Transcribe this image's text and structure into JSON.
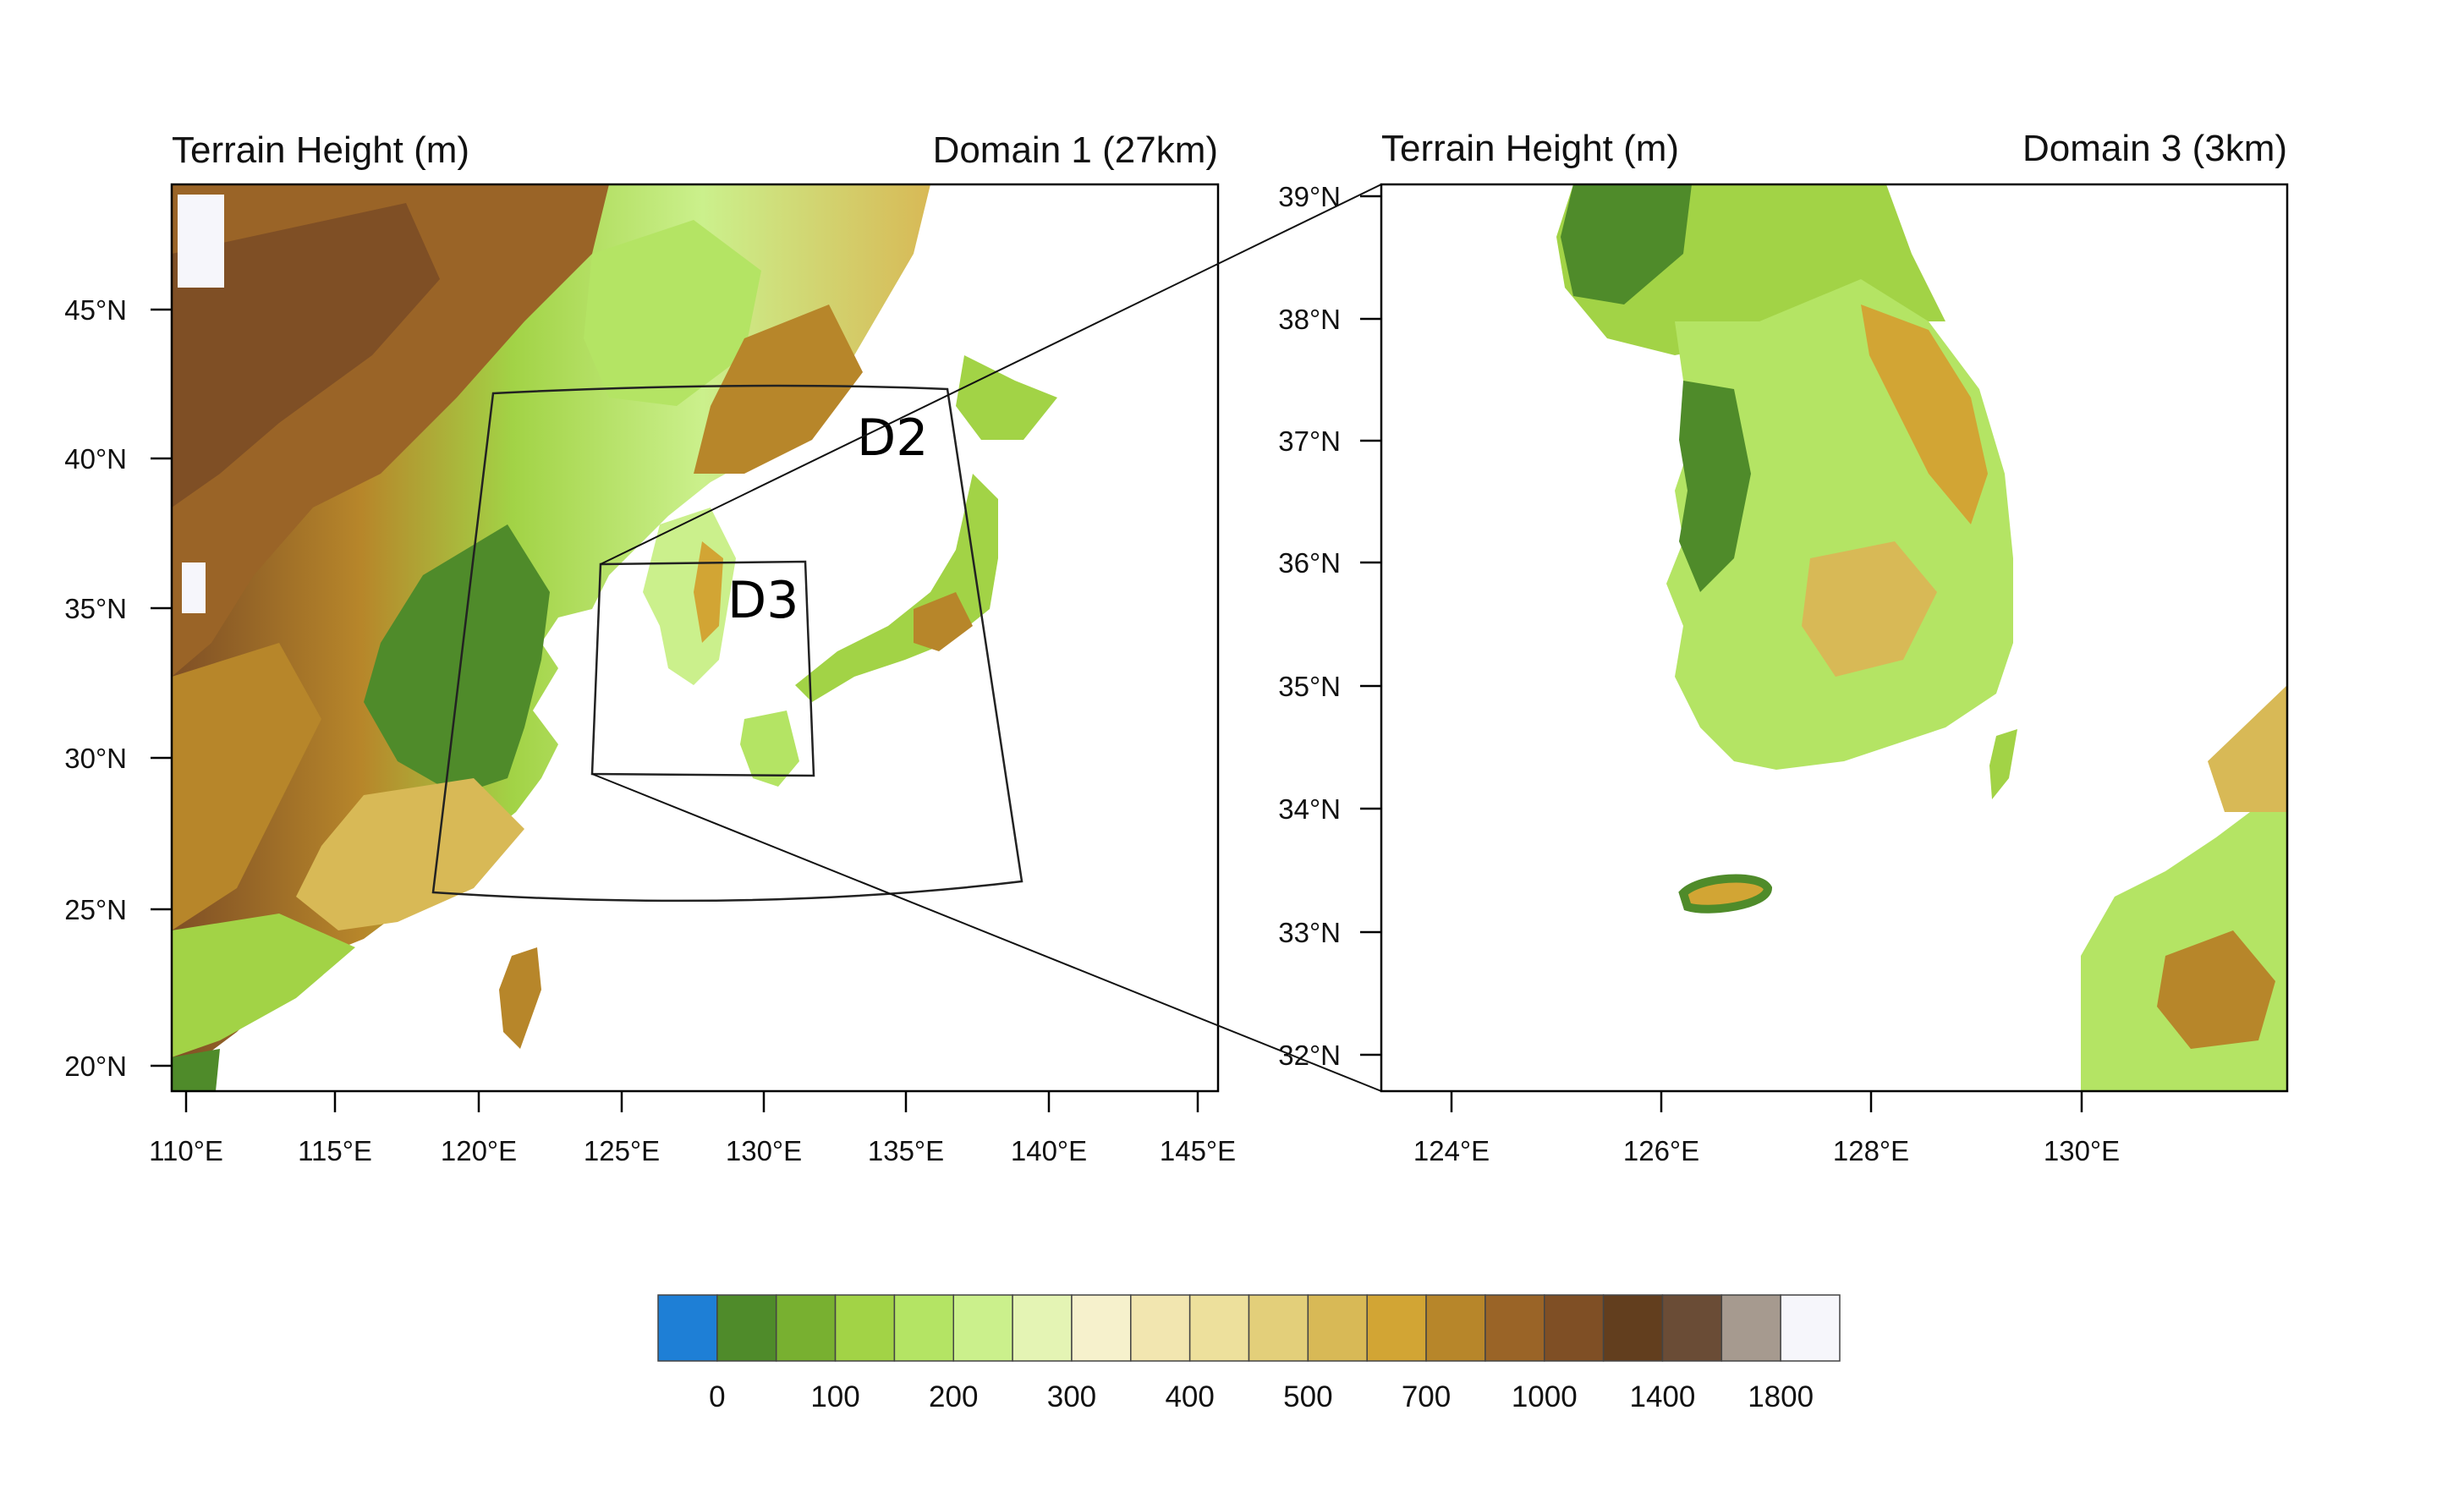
{
  "left_panel": {
    "title": "Terrain Height (m)",
    "domain_label": "Domain 1 (27km)",
    "lat_ticks": [
      "45°N",
      "40°N",
      "35°N",
      "30°N",
      "25°N",
      "20°N"
    ],
    "lon_ticks": [
      "110°E",
      "115°E",
      "120°E",
      "125°E",
      "130°E",
      "135°E",
      "140°E",
      "145°E"
    ],
    "nested_domains": [
      "D2",
      "D3"
    ]
  },
  "right_panel": {
    "title": "Terrain Height (m)",
    "domain_label": "Domain 3 (3km)",
    "lat_ticks": [
      "39°N",
      "38°N",
      "37°N",
      "36°N",
      "35°N",
      "34°N",
      "33°N",
      "32°N"
    ],
    "lon_ticks": [
      "124°E",
      "126°E",
      "128°E",
      "130°E"
    ]
  },
  "colorbar": {
    "labels": [
      "0",
      "100",
      "200",
      "300",
      "400",
      "500",
      "700",
      "1000",
      "1400",
      "1800"
    ],
    "colors": [
      "#1e7fd6",
      "#4f8b2a",
      "#78b030",
      "#a2d346",
      "#b4e464",
      "#cbf08c",
      "#e4f4b4",
      "#f6f1cc",
      "#f2e6b0",
      "#ede09c",
      "#e3cf7a",
      "#d8b956",
      "#d2a534",
      "#b7862a",
      "#9a6427",
      "#7f4f25",
      "#623e1e",
      "#6a4c36",
      "#a69a8f",
      "#f6f6fb"
    ]
  },
  "palette": {
    "low": "#4f8b2a",
    "mid": "#b4e464",
    "plain": "#e4f4b4",
    "hill": "#d2a534",
    "mountain": "#9a6427",
    "peak": "#623e1e",
    "snow": "#f6f6fb"
  }
}
